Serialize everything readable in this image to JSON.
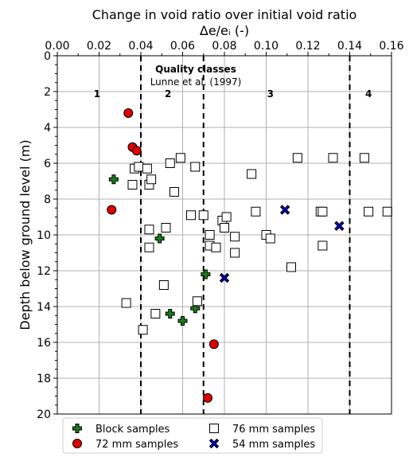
{
  "chart_data": {
    "type": "scatter",
    "title": "Change in void ratio over initial void ratio",
    "xlabel": "Δe/eᵢ (-)",
    "ylabel": "Depth below ground level (m)",
    "xlim": [
      0,
      0.16
    ],
    "ylim": [
      0,
      20
    ],
    "y_inverted": true,
    "x_axis_position": "top",
    "grid": true,
    "x_ticks": [
      "0.00",
      "0.02",
      "0.04",
      "0.06",
      "0.08",
      "0.10",
      "0.12",
      "0.14",
      "0.16"
    ],
    "y_ticks": [
      "0",
      "2",
      "4",
      "6",
      "8",
      "10",
      "12",
      "14",
      "16",
      "18",
      "20"
    ],
    "class_boundaries": [
      0.04,
      0.07,
      0.14
    ],
    "class_labels": [
      {
        "label": "1",
        "x": 0.019,
        "y": 2.3
      },
      {
        "label": "2",
        "x": 0.053,
        "y": 2.3
      },
      {
        "label": "3",
        "x": 0.102,
        "y": 2.3
      },
      {
        "label": "4",
        "x": 0.149,
        "y": 2.3
      }
    ],
    "annotation": {
      "title": "Quality classes",
      "subtitle": "Lunne et al. (1997)"
    },
    "legend_position": "bottom",
    "series": [
      {
        "name": "Block samples",
        "marker": "plus",
        "color": "#1a7a1a",
        "points": [
          [
            0.027,
            6.9
          ],
          [
            0.049,
            10.2
          ],
          [
            0.054,
            14.4
          ],
          [
            0.06,
            14.8
          ],
          [
            0.066,
            14.1
          ],
          [
            0.071,
            12.2
          ]
        ]
      },
      {
        "name": "76 mm samples",
        "marker": "square",
        "color": "#ffffff",
        "points": [
          [
            0.033,
            13.8
          ],
          [
            0.037,
            6.3
          ],
          [
            0.039,
            6.2
          ],
          [
            0.036,
            7.2
          ],
          [
            0.041,
            15.3
          ],
          [
            0.043,
            6.3
          ],
          [
            0.044,
            7.2
          ],
          [
            0.045,
            6.9
          ],
          [
            0.044,
            9.7
          ],
          [
            0.044,
            10.7
          ],
          [
            0.047,
            14.4
          ],
          [
            0.051,
            12.8
          ],
          [
            0.052,
            9.6
          ],
          [
            0.054,
            6.0
          ],
          [
            0.056,
            7.6
          ],
          [
            0.059,
            5.7
          ],
          [
            0.064,
            8.9
          ],
          [
            0.066,
            6.2
          ],
          [
            0.067,
            13.7
          ],
          [
            0.07,
            8.9
          ],
          [
            0.073,
            10.0
          ],
          [
            0.073,
            10.6
          ],
          [
            0.076,
            10.7
          ],
          [
            0.079,
            9.2
          ],
          [
            0.08,
            9.6
          ],
          [
            0.081,
            9.0
          ],
          [
            0.085,
            10.1
          ],
          [
            0.085,
            11.0
          ],
          [
            0.093,
            6.6
          ],
          [
            0.095,
            8.7
          ],
          [
            0.1,
            10.0
          ],
          [
            0.102,
            10.2
          ],
          [
            0.112,
            11.8
          ],
          [
            0.115,
            5.7
          ],
          [
            0.126,
            8.7
          ],
          [
            0.127,
            8.7
          ],
          [
            0.127,
            10.6
          ],
          [
            0.132,
            5.7
          ],
          [
            0.147,
            5.7
          ],
          [
            0.149,
            8.7
          ],
          [
            0.158,
            8.7
          ]
        ]
      },
      {
        "name": "72 mm samples",
        "marker": "circle",
        "color": "#e00000",
        "points": [
          [
            0.034,
            3.2
          ],
          [
            0.036,
            5.1
          ],
          [
            0.038,
            5.3
          ],
          [
            0.026,
            8.6
          ],
          [
            0.075,
            16.1
          ],
          [
            0.072,
            19.1
          ]
        ]
      },
      {
        "name": "54 mm samples",
        "marker": "x",
        "color": "#0000cc",
        "points": [
          [
            0.109,
            8.6
          ],
          [
            0.135,
            9.5
          ],
          [
            0.08,
            12.4
          ]
        ]
      }
    ]
  }
}
